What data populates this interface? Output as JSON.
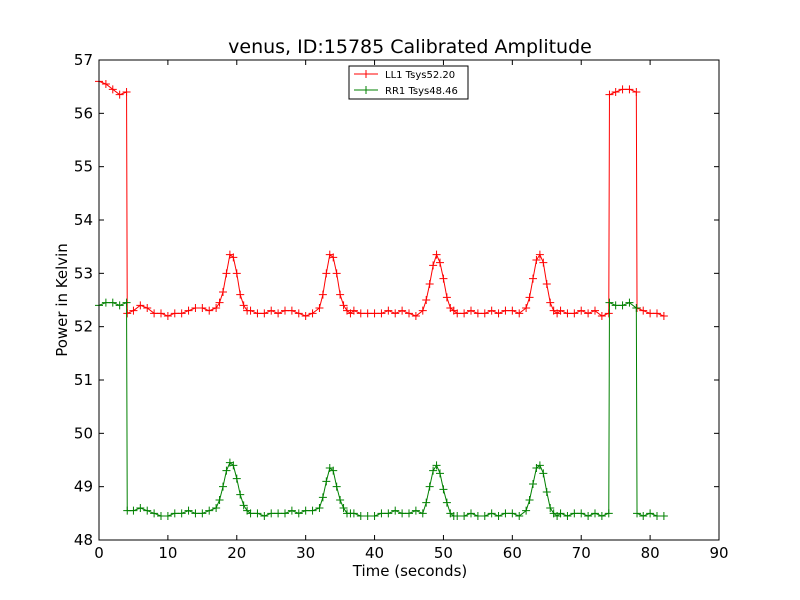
{
  "chart_data": {
    "type": "line",
    "title": "venus, ID:15785 Calibrated Amplitude",
    "xlabel": "Time (seconds)",
    "ylabel": "Power in Kelvin",
    "xlim": [
      0,
      90
    ],
    "ylim": [
      48,
      57
    ],
    "xticks": [
      "0",
      "10",
      "20",
      "30",
      "40",
      "50",
      "60",
      "70",
      "80",
      "90"
    ],
    "yticks": [
      "48",
      "49",
      "50",
      "51",
      "52",
      "53",
      "54",
      "55",
      "56",
      "57"
    ],
    "grid": false,
    "legend_position": "top-center",
    "marker": "+",
    "series": [
      {
        "name": "LL1 Tsys52.20",
        "color": "#ff0000",
        "x": [
          0,
          1,
          2,
          3,
          4,
          4.1,
          5,
          6,
          7,
          8,
          9,
          10,
          11,
          12,
          13,
          14,
          15,
          16,
          17,
          17.5,
          18,
          18.5,
          19,
          19.5,
          20,
          20.5,
          21,
          21.5,
          22,
          23,
          24,
          25,
          26,
          27,
          28,
          29,
          30,
          31,
          32,
          32.5,
          33,
          33.5,
          34,
          34.5,
          35,
          35.5,
          36,
          36.5,
          37,
          38,
          39,
          40,
          41,
          42,
          43,
          44,
          45,
          46,
          47,
          47.5,
          48,
          48.5,
          49,
          49.5,
          50,
          50.5,
          51,
          51.5,
          52,
          53,
          54,
          55,
          56,
          57,
          58,
          59,
          60,
          61,
          62,
          62.5,
          63,
          63.5,
          64,
          64.5,
          65,
          65.5,
          66,
          66.5,
          67,
          68,
          69,
          70,
          71,
          72,
          73,
          74,
          74.1,
          75,
          76,
          77,
          78,
          78.1,
          79,
          80,
          81,
          82
        ],
        "y": [
          56.6,
          56.55,
          56.45,
          56.35,
          56.4,
          52.25,
          52.3,
          52.4,
          52.35,
          52.25,
          52.25,
          52.2,
          52.25,
          52.25,
          52.3,
          52.35,
          52.35,
          52.3,
          52.35,
          52.45,
          52.65,
          53.0,
          53.35,
          53.3,
          53.0,
          52.6,
          52.4,
          52.3,
          52.3,
          52.25,
          52.25,
          52.3,
          52.25,
          52.3,
          52.3,
          52.25,
          52.2,
          52.25,
          52.35,
          52.6,
          53.0,
          53.35,
          53.3,
          53.0,
          52.6,
          52.4,
          52.3,
          52.25,
          52.3,
          52.25,
          52.25,
          52.25,
          52.25,
          52.3,
          52.25,
          52.3,
          52.25,
          52.2,
          52.3,
          52.5,
          52.8,
          53.15,
          53.35,
          53.2,
          52.9,
          52.55,
          52.35,
          52.3,
          52.25,
          52.25,
          52.3,
          52.25,
          52.25,
          52.3,
          52.25,
          52.3,
          52.3,
          52.25,
          52.35,
          52.55,
          52.9,
          53.25,
          53.35,
          53.2,
          52.8,
          52.45,
          52.3,
          52.25,
          52.3,
          52.25,
          52.25,
          52.3,
          52.25,
          52.3,
          52.2,
          52.25,
          56.35,
          56.4,
          56.45,
          56.45,
          56.4,
          52.35,
          52.3,
          52.25,
          52.25,
          52.2
        ]
      },
      {
        "name": "RR1 Tsys48.46",
        "color": "#008000",
        "x": [
          0,
          1,
          2,
          3,
          4,
          4.1,
          5,
          6,
          7,
          8,
          9,
          10,
          11,
          12,
          13,
          14,
          15,
          16,
          17,
          17.5,
          18,
          18.5,
          19,
          19.5,
          20,
          20.5,
          21,
          21.5,
          22,
          23,
          24,
          25,
          26,
          27,
          28,
          29,
          30,
          31,
          32,
          32.5,
          33,
          33.5,
          34,
          34.5,
          35,
          35.5,
          36,
          36.5,
          37,
          38,
          39,
          40,
          41,
          42,
          43,
          44,
          45,
          46,
          47,
          47.5,
          48,
          48.5,
          49,
          49.5,
          50,
          50.5,
          51,
          51.5,
          52,
          53,
          54,
          55,
          56,
          57,
          58,
          59,
          60,
          61,
          62,
          62.5,
          63,
          63.5,
          64,
          64.5,
          65,
          65.5,
          66,
          66.5,
          67,
          68,
          69,
          70,
          71,
          72,
          73,
          74,
          74.1,
          75,
          76,
          77,
          78,
          78.1,
          79,
          80,
          81,
          82
        ],
        "y": [
          52.4,
          52.45,
          52.45,
          52.4,
          52.45,
          48.55,
          48.55,
          48.6,
          48.55,
          48.5,
          48.45,
          48.45,
          48.5,
          48.5,
          48.55,
          48.5,
          48.5,
          48.55,
          48.6,
          48.75,
          49.0,
          49.3,
          49.45,
          49.4,
          49.15,
          48.85,
          48.65,
          48.55,
          48.5,
          48.5,
          48.45,
          48.5,
          48.5,
          48.5,
          48.55,
          48.5,
          48.55,
          48.55,
          48.6,
          48.8,
          49.1,
          49.35,
          49.3,
          49.0,
          48.75,
          48.6,
          48.5,
          48.5,
          48.5,
          48.45,
          48.45,
          48.45,
          48.5,
          48.5,
          48.55,
          48.5,
          48.5,
          48.55,
          48.5,
          48.7,
          49.0,
          49.3,
          49.4,
          49.25,
          48.95,
          48.7,
          48.5,
          48.45,
          48.45,
          48.45,
          48.5,
          48.45,
          48.45,
          48.5,
          48.45,
          48.5,
          48.5,
          48.45,
          48.55,
          48.75,
          49.05,
          49.35,
          49.4,
          49.25,
          48.9,
          48.6,
          48.5,
          48.45,
          48.5,
          48.45,
          48.5,
          48.5,
          48.45,
          48.5,
          48.45,
          48.5,
          52.45,
          52.4,
          52.4,
          52.45,
          52.35,
          48.5,
          48.45,
          48.5,
          48.45,
          48.45
        ]
      }
    ]
  }
}
